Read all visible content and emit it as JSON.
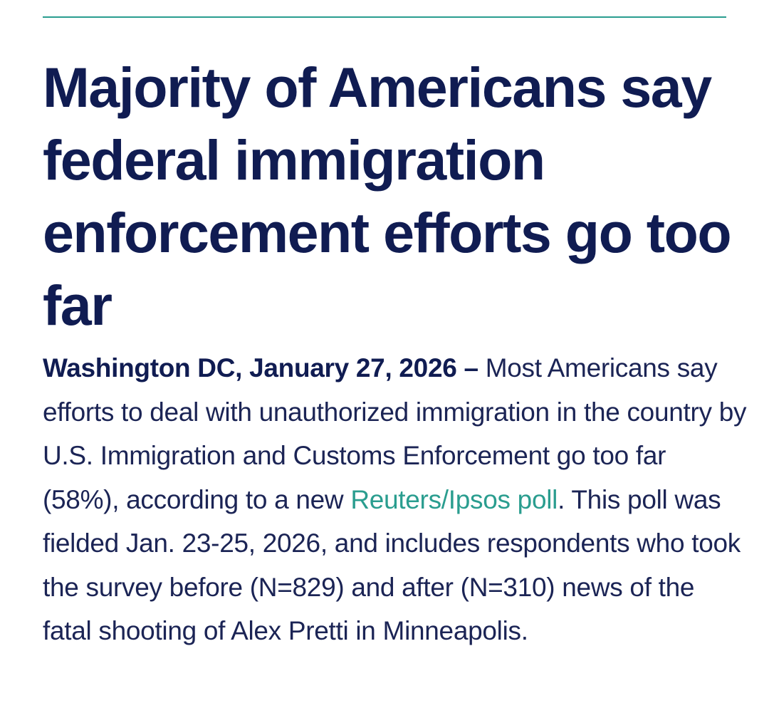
{
  "article": {
    "headline": "Majority of Americans say federal immigration enforcement efforts go too far",
    "dateline": "Washington DC, January 27, 2026 –",
    "body_before_link": " Most Americans say efforts to deal with unauthorized immigration in the country by U.S. Immigration and Customs Enforcement go too far (58%), according to a new ",
    "poll_link_text": "Reuters/Ipsos poll",
    "body_after_link": ". This poll was fielded Jan. 23-25, 2026, and includes respondents who took the survey before (N=829) and after (N=310) news of the fatal shooting of Alex Pretti in Minneapolis."
  },
  "colors": {
    "headline": "#101c52",
    "body": "#1b2455",
    "accent": "#2a9d8f"
  }
}
